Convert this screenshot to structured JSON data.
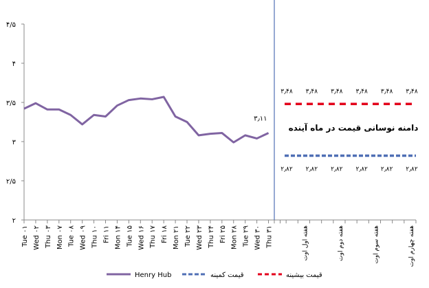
{
  "chart_data": {
    "type": "line",
    "ylim": [
      2,
      4.5
    ],
    "y_ticks": [
      "۲",
      "۲/۵",
      "۳",
      "۳/۵",
      "۴",
      "۴/۵"
    ],
    "y_tick_values": [
      2,
      2.5,
      3,
      3.5,
      4,
      4.5
    ],
    "categories": [
      "Tue ۰۱",
      "Wed ۰۲",
      "Thu ۰۳",
      "Mon ۰۷",
      "Tue ۰۸",
      "Wed ۰۹",
      "Thu ۱۰",
      "Fri ۱۱",
      "Mon ۱۴",
      "Tue ۱۵",
      "Wed ۱۶",
      "Thu ۱۷",
      "Fri ۱۸",
      "Mon ۲۱",
      "Tue ۲۲",
      "Wed ۲۳",
      "Thu ۲۴",
      "Fri ۲۵",
      "Mon ۲۸",
      "Tue ۲۹",
      "Wed ۳۰",
      "Thu ۳۱"
    ],
    "series": [
      {
        "name": "Henry Hub",
        "color": "#8064a2",
        "values": [
          3.42,
          3.49,
          3.41,
          3.41,
          3.34,
          3.22,
          3.34,
          3.32,
          3.46,
          3.53,
          3.55,
          3.54,
          3.57,
          3.32,
          3.25,
          3.08,
          3.1,
          3.11,
          2.99,
          3.08,
          3.04,
          3.11
        ]
      }
    ],
    "last_label": "۳٫۱۱",
    "forecast_categories": [
      "هفته اول اوت",
      "هفته دوم اوت",
      "هفته سوم اوت",
      "هفته چهارم اوت"
    ],
    "max_line": {
      "name": "قیمت بیشینه",
      "value": 3.48,
      "color": "#e3001b",
      "labels": [
        "۳٫۴۸",
        "۳٫۴۸",
        "۳٫۴۸",
        "۳٫۴۸",
        "۳٫۴۸",
        "۳٫۴۸"
      ]
    },
    "min_line": {
      "name": "قیمت کمینه",
      "value": 2.82,
      "color": "#4f6fb5",
      "labels": [
        "۲٫۸۲",
        "۲٫۸۲",
        "۲٫۸۲",
        "۲٫۸۲",
        "۲٫۸۲",
        "۲٫۸۲"
      ]
    },
    "annotation": "دامنه نوسانی قیمت در ماه آینده",
    "legend_position": "bottom"
  }
}
